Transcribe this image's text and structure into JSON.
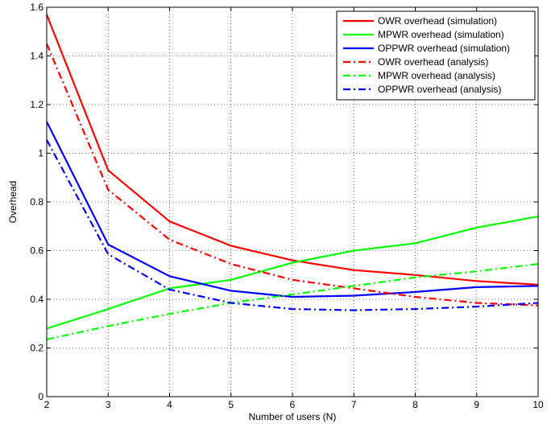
{
  "chart_data": {
    "type": "line",
    "title": "",
    "xlabel": "Number of users (N)",
    "ylabel": "Overhead",
    "xlim": [
      2,
      10
    ],
    "ylim": [
      0,
      1.6
    ],
    "x_ticks": [
      2,
      3,
      4,
      5,
      6,
      7,
      8,
      9,
      10
    ],
    "y_ticks": [
      0,
      0.2,
      0.4,
      0.6,
      0.8,
      1,
      1.2,
      1.4,
      1.6
    ],
    "x_tick_labels": [
      "2",
      "3",
      "4",
      "5",
      "6",
      "7",
      "8",
      "9",
      "10"
    ],
    "y_tick_labels": [
      "0",
      "0.2",
      "0.4",
      "0.6",
      "0.8",
      "1",
      "1.2",
      "1.4",
      "1.6"
    ],
    "grid": true,
    "legend_position": "top-right",
    "x": [
      2,
      3,
      4,
      5,
      6,
      7,
      8,
      9,
      10
    ],
    "series": [
      {
        "name": "OWR overhead (simulation)",
        "color": "#ff0000",
        "style": "solid",
        "values": [
          1.57,
          0.93,
          0.72,
          0.62,
          0.56,
          0.52,
          0.5,
          0.475,
          0.46
        ]
      },
      {
        "name": "MPWR overhead (simulation)",
        "color": "#00ff00",
        "style": "solid",
        "values": [
          0.28,
          0.36,
          0.445,
          0.48,
          0.55,
          0.6,
          0.63,
          0.695,
          0.74
        ]
      },
      {
        "name": "OPPWR overhead (simulation)",
        "color": "#0000ff",
        "style": "solid",
        "values": [
          1.13,
          0.625,
          0.495,
          0.435,
          0.41,
          0.415,
          0.43,
          0.45,
          0.455
        ]
      },
      {
        "name": "OWR overhead (analysis)",
        "color": "#ff0000",
        "style": "dashdot",
        "values": [
          1.45,
          0.85,
          0.645,
          0.545,
          0.48,
          0.445,
          0.41,
          0.385,
          0.375
        ]
      },
      {
        "name": "MPWR overhead (analysis)",
        "color": "#00ff00",
        "style": "dashdot",
        "values": [
          0.235,
          0.29,
          0.34,
          0.385,
          0.42,
          0.455,
          0.49,
          0.515,
          0.545
        ]
      },
      {
        "name": "OPPWR overhead (analysis)",
        "color": "#0000ff",
        "style": "dashdot",
        "values": [
          1.055,
          0.585,
          0.44,
          0.385,
          0.36,
          0.355,
          0.36,
          0.37,
          0.385
        ]
      }
    ]
  }
}
